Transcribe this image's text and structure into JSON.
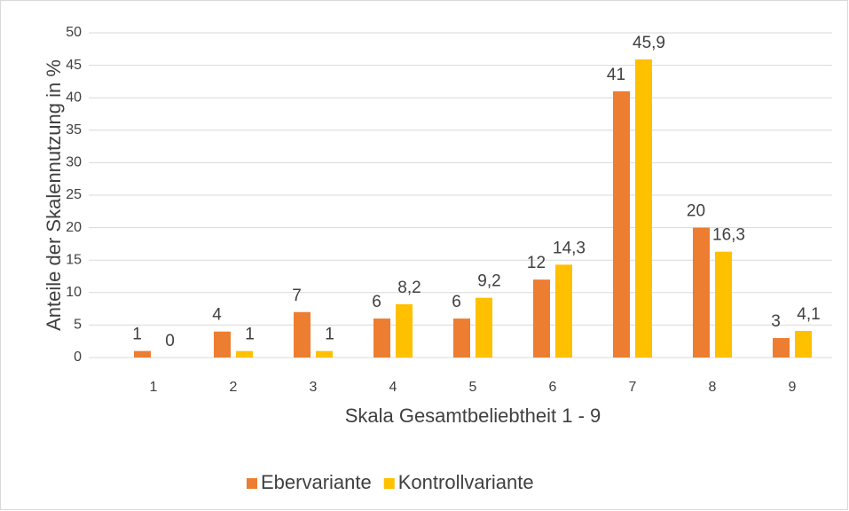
{
  "chart_data": {
    "type": "bar",
    "x_label": "Skala Gesamtbeliebtheit 1 - 9",
    "y_label": "Anteile der Skalennutzung in %",
    "categories": [
      "1",
      "2",
      "3",
      "4",
      "5",
      "6",
      "7",
      "8",
      "9"
    ],
    "series": [
      {
        "name": "Ebervariante",
        "color": "#ED7D31",
        "values": [
          1,
          4,
          7,
          6,
          6,
          12,
          41,
          20,
          3
        ]
      },
      {
        "name": "Kontrollvariante",
        "color": "#FFC000",
        "values": [
          0,
          1,
          1,
          8.2,
          9.2,
          14.3,
          45.9,
          16.3,
          4.1
        ],
        "value_labels": [
          "0",
          "1",
          "1",
          "8,2",
          "9,2",
          "14,3",
          "45,9",
          "16,3",
          "4,1"
        ]
      }
    ],
    "ylim": [
      0,
      50
    ],
    "yticks": [
      0,
      5,
      10,
      15,
      20,
      25,
      30,
      35,
      40,
      45,
      50
    ],
    "grid": true,
    "legend": "bottom"
  }
}
